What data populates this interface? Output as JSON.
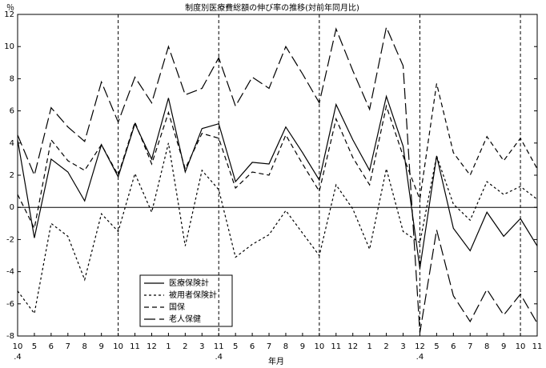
{
  "chart_data": {
    "type": "line",
    "title": "制度別医療費総額の伸び率の推移(対前年同月比)",
    "y_label": "％",
    "x_label": "年月",
    "categories": [
      "10",
      "5",
      "6",
      "7",
      "8",
      "9",
      "10",
      "11",
      "12",
      "1",
      "2",
      "3",
      "11",
      "5",
      "6",
      "7",
      "8",
      "9",
      "10",
      "11",
      "12",
      "1",
      "2",
      "3",
      "12",
      "5",
      "6",
      "7",
      "8",
      "9",
      "10",
      "11"
    ],
    "categories2": [
      ".4",
      null,
      null,
      null,
      null,
      null,
      null,
      null,
      null,
      null,
      null,
      null,
      ".4",
      null,
      null,
      null,
      null,
      null,
      null,
      null,
      null,
      null,
      null,
      null,
      ".4",
      null,
      null,
      null,
      null,
      null,
      null,
      null
    ],
    "ylim": [
      -8,
      12
    ],
    "yticks": [
      -8,
      -6,
      -4,
      -2,
      0,
      2,
      4,
      6,
      8,
      10,
      12
    ],
    "series": [
      {
        "name": "医療保険計",
        "color": "#000000",
        "line_style": "solid",
        "values": [
          4.2,
          -1.9,
          3.0,
          2.2,
          0.4,
          3.9,
          1.9,
          5.2,
          3.0,
          6.8,
          2.2,
          4.9,
          5.2,
          1.6,
          2.8,
          2.7,
          5.0,
          3.4,
          1.7,
          6.4,
          4.2,
          2.3,
          6.9,
          3.8,
          -3.8,
          3.2,
          -1.3,
          -2.7,
          -0.3,
          -1.8,
          -0.7,
          -2.4
        ]
      },
      {
        "name": "被用者保険計",
        "color": "#000000",
        "line_style": "dotted",
        "values": [
          -5.2,
          -6.6,
          -1.0,
          -1.8,
          -4.5,
          -0.4,
          -1.5,
          2.1,
          -0.3,
          4.0,
          -2.4,
          2.3,
          1.1,
          -3.1,
          -2.3,
          -1.7,
          -0.2,
          -1.6,
          -3.0,
          1.4,
          -0.1,
          -2.6,
          2.4,
          -1.5,
          -2.2,
          3.2,
          0.2,
          -0.8,
          1.6,
          0.8,
          1.3,
          0.5
        ]
      },
      {
        "name": "国保",
        "color": "#000000",
        "line_style": "dashed",
        "values": [
          0.8,
          -1.3,
          4.2,
          2.9,
          2.3,
          3.9,
          2.0,
          5.3,
          2.7,
          5.9,
          2.4,
          4.6,
          4.3,
          1.2,
          2.2,
          2.0,
          4.5,
          2.7,
          1.0,
          5.5,
          3.1,
          1.4,
          6.3,
          3.2,
          0.5,
          7.7,
          3.4,
          2.0,
          4.4,
          2.9,
          4.3,
          2.4
        ]
      },
      {
        "name": "老人保健",
        "color": "#000000",
        "line_style": "longdash",
        "values": [
          4.5,
          2.0,
          6.2,
          5.0,
          4.1,
          7.8,
          5.3,
          8.1,
          6.5,
          10.0,
          7.0,
          7.4,
          9.3,
          6.3,
          8.1,
          7.4,
          10.0,
          8.3,
          6.5,
          11.1,
          8.5,
          6.1,
          11.2,
          8.8,
          -7.8,
          -1.4,
          -5.5,
          -7.1,
          -5.1,
          -6.7,
          -5.4,
          -7.2
        ]
      }
    ]
  }
}
